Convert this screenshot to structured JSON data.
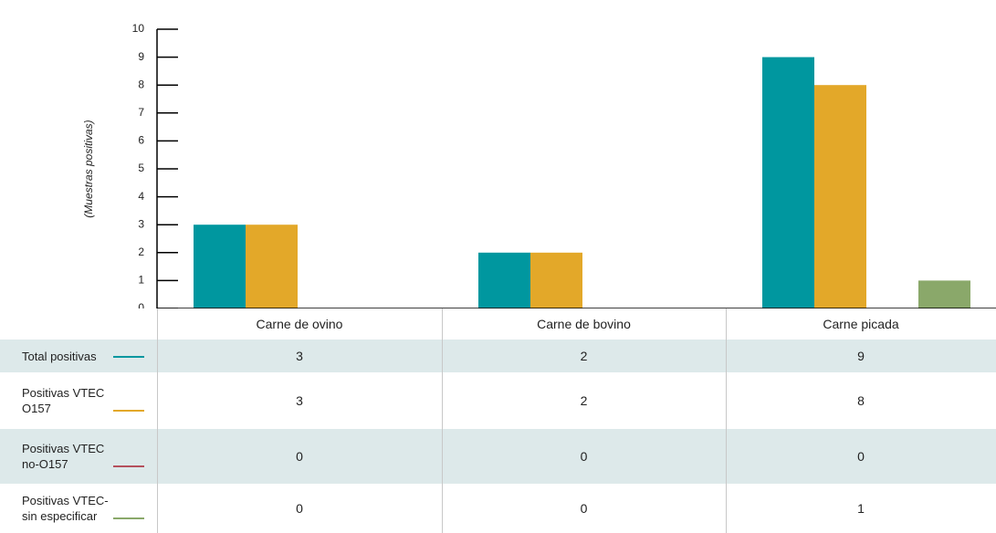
{
  "chart_data": {
    "type": "bar",
    "y_label": "(Muestras positivas)",
    "categories": [
      "Carne de ovino",
      "Carne de bovino",
      "Carne picada"
    ],
    "series": [
      {
        "name": "Total positivas",
        "color": "#00979f",
        "values": [
          3,
          2,
          9
        ]
      },
      {
        "name": "Positivas VTEC O157",
        "color": "#e3a829",
        "values": [
          3,
          2,
          8
        ]
      },
      {
        "name": "Positivas VTEC no-O157",
        "color": "#b5505d",
        "values": [
          0,
          0,
          0
        ]
      },
      {
        "name": "Positivas VTEC-sin especificar",
        "color": "#8aa86a",
        "values": [
          0,
          0,
          1
        ]
      }
    ],
    "ylim": [
      0,
      10
    ],
    "yticks": [
      0,
      1,
      2,
      3,
      4,
      5,
      6,
      7,
      8,
      9,
      10
    ]
  }
}
